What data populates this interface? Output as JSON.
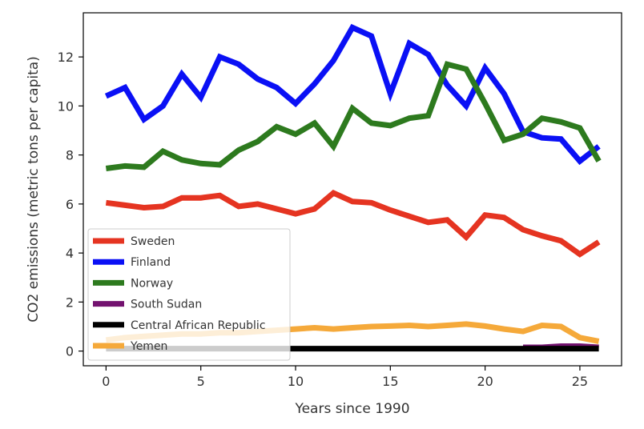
{
  "chart_data": {
    "type": "line",
    "title": "",
    "xlabel": "Years since 1990",
    "ylabel": "CO2 emissions (metric tons per capita)",
    "xlim": [
      -1.2,
      27.2
    ],
    "ylim": [
      -0.6,
      13.8
    ],
    "xticks": [
      0,
      5,
      10,
      15,
      20,
      25
    ],
    "yticks": [
      0,
      2,
      4,
      6,
      8,
      10,
      12
    ],
    "grid": false,
    "legend_position": "lower-left",
    "x": [
      0,
      1,
      2,
      3,
      4,
      5,
      6,
      7,
      8,
      9,
      10,
      11,
      12,
      13,
      14,
      15,
      16,
      17,
      18,
      19,
      20,
      21,
      22,
      23,
      24,
      25,
      26
    ],
    "series": [
      {
        "name": "Sweden",
        "color": "#e53421",
        "values": [
          6.05,
          5.95,
          5.85,
          5.9,
          6.25,
          6.25,
          6.35,
          5.9,
          6.0,
          5.8,
          5.6,
          5.8,
          6.45,
          6.1,
          6.05,
          5.75,
          5.5,
          5.25,
          5.35,
          4.65,
          5.55,
          5.45,
          4.95,
          4.7,
          4.5,
          3.95,
          4.45
        ]
      },
      {
        "name": "Finland",
        "color": "#0a10f5",
        "values": [
          10.4,
          10.75,
          9.45,
          10.0,
          11.3,
          10.35,
          12.0,
          11.7,
          11.1,
          10.75,
          10.1,
          10.9,
          11.85,
          13.2,
          12.85,
          10.5,
          12.55,
          12.1,
          10.85,
          10.0,
          11.55,
          10.5,
          8.95,
          8.7,
          8.65,
          7.75,
          8.35
        ]
      },
      {
        "name": "Norway",
        "color": "#2d7a1e",
        "values": [
          7.45,
          7.55,
          7.5,
          8.15,
          7.8,
          7.65,
          7.6,
          8.2,
          8.55,
          9.15,
          8.85,
          9.3,
          8.35,
          9.9,
          9.3,
          9.2,
          9.5,
          9.6,
          11.7,
          11.5,
          10.1,
          8.6,
          8.85,
          9.5,
          9.35,
          9.1,
          7.75
        ]
      },
      {
        "name": "South Sudan",
        "color": "#73126f",
        "x": [
          22,
          23,
          24,
          25,
          26
        ],
        "values": [
          0.15,
          0.15,
          0.2,
          0.2,
          0.15
        ]
      },
      {
        "name": "Central African Republic",
        "color": "#000000",
        "values": [
          0.1,
          0.1,
          0.1,
          0.1,
          0.1,
          0.1,
          0.1,
          0.1,
          0.1,
          0.1,
          0.1,
          0.1,
          0.1,
          0.1,
          0.1,
          0.1,
          0.1,
          0.1,
          0.1,
          0.1,
          0.1,
          0.1,
          0.1,
          0.1,
          0.1,
          0.1,
          0.1
        ]
      },
      {
        "name": "Yemen",
        "color": "#f5a93a",
        "values": [
          0.45,
          0.55,
          0.6,
          0.65,
          0.7,
          0.7,
          0.75,
          0.75,
          0.8,
          0.85,
          0.9,
          0.95,
          0.9,
          0.95,
          1.0,
          1.02,
          1.05,
          1.0,
          1.05,
          1.1,
          1.02,
          0.9,
          0.8,
          1.05,
          1.0,
          0.55,
          0.4
        ]
      }
    ]
  }
}
